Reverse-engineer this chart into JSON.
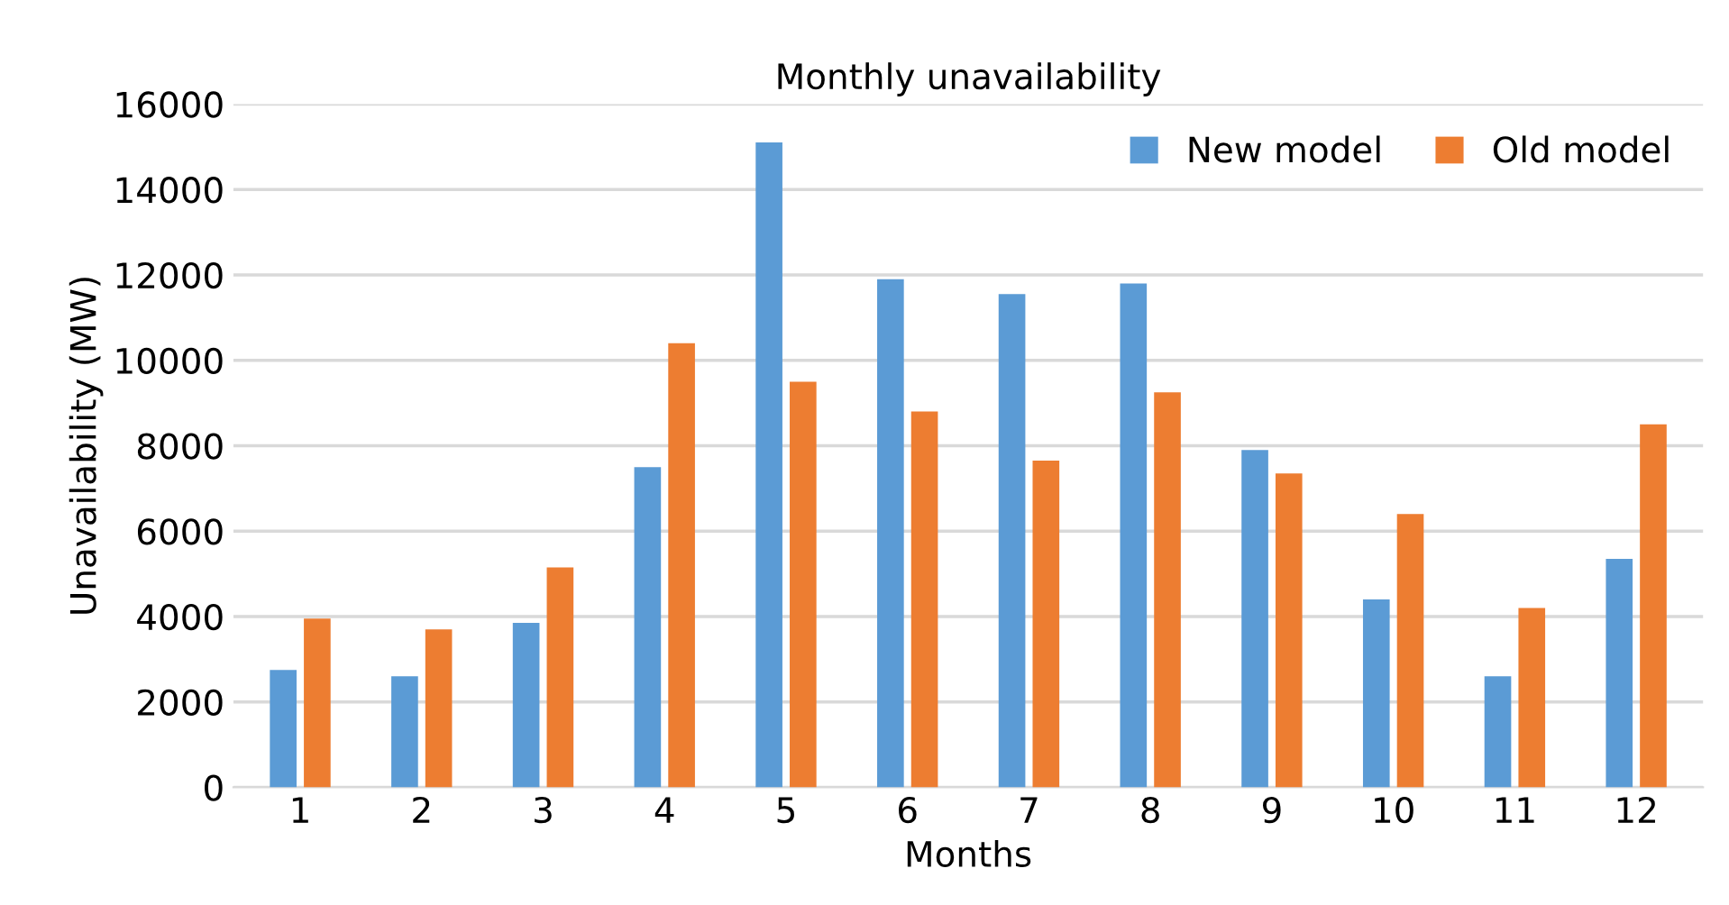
{
  "chart_data": {
    "type": "bar",
    "title": "Monthly unavailability",
    "xlabel": "Months",
    "ylabel": "Unavailability (MW)",
    "categories": [
      "1",
      "2",
      "3",
      "4",
      "5",
      "6",
      "7",
      "8",
      "9",
      "10",
      "11",
      "12"
    ],
    "series": [
      {
        "name": "New model",
        "color": "#5b9bd5",
        "values": [
          2750,
          2600,
          3850,
          7500,
          15100,
          11900,
          11550,
          11800,
          7900,
          4400,
          2600,
          5350
        ]
      },
      {
        "name": "Old model",
        "color": "#ed7d31",
        "values": [
          3950,
          3700,
          5150,
          10400,
          9500,
          8800,
          7650,
          9250,
          7350,
          6400,
          4200,
          8500
        ]
      }
    ],
    "ylim": [
      0,
      16000
    ],
    "yticks": [
      0,
      2000,
      4000,
      6000,
      8000,
      10000,
      12000,
      14000,
      16000
    ],
    "grid": "y",
    "legend": "top right"
  }
}
